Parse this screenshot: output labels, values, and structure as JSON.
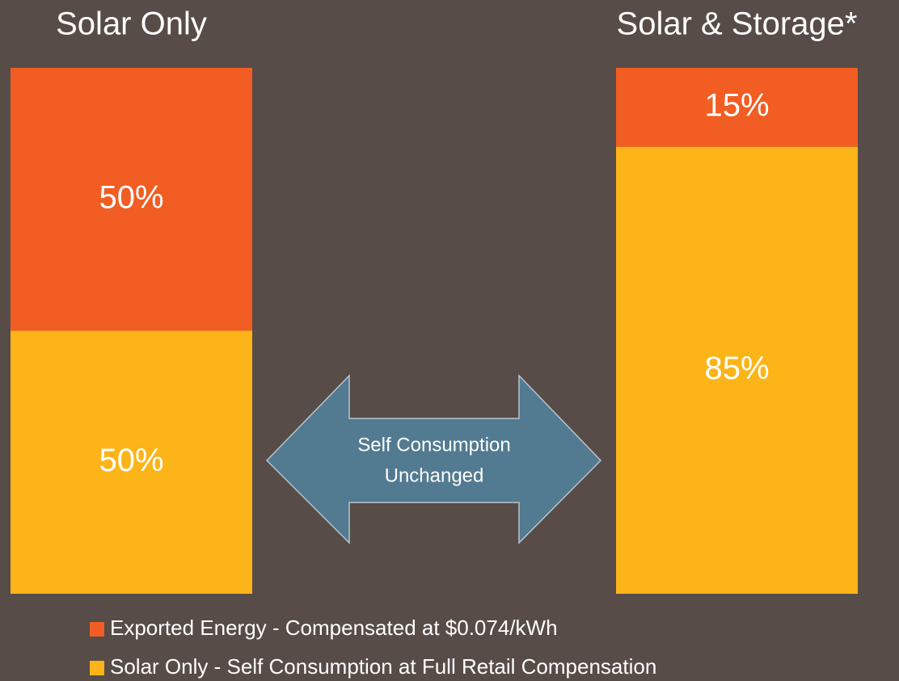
{
  "chart_data": {
    "type": "stacked-bar",
    "categories": [
      "Solar Only",
      "Solar & Storage*"
    ],
    "series": [
      {
        "name": "Exported Energy - Compensated at $0.074/kWh",
        "color": "#f15d22",
        "values": [
          50,
          15
        ],
        "value_labels": [
          "50%",
          "15%"
        ]
      },
      {
        "name": "Solar Only - Self Consumption at Full Retail Compensation",
        "color": "#fdb418",
        "values": [
          50,
          85
        ],
        "value_labels": [
          "50%",
          "85%"
        ]
      }
    ],
    "annotation": [
      "Self Consumption",
      "Unchanged"
    ]
  }
}
